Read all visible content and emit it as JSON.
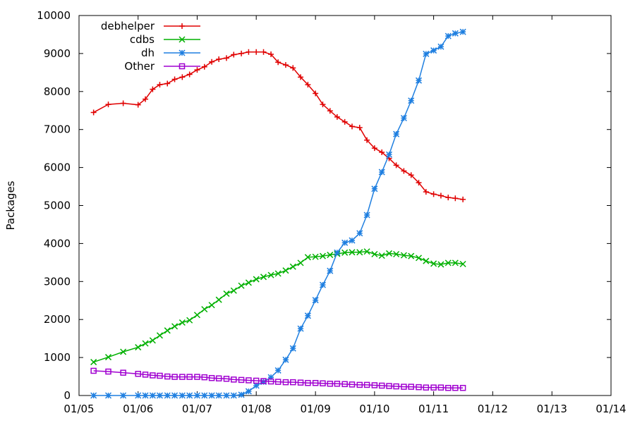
{
  "chart_data": {
    "type": "line",
    "xlabel": "",
    "ylabel": "Packages",
    "xlim": [
      "2005-01-01",
      "2014-01-01"
    ],
    "ylim": [
      0,
      10000
    ],
    "x_ticks": [
      "01/05",
      "01/06",
      "01/07",
      "01/08",
      "01/09",
      "01/10",
      "01/11",
      "01/12",
      "01/13",
      "01/14"
    ],
    "y_ticks": [
      "0",
      "1000",
      "2000",
      "3000",
      "4000",
      "5000",
      "6000",
      "7000",
      "8000",
      "9000",
      "10000"
    ],
    "grid": false,
    "legend_position": "top-left",
    "x": [
      "2005-04-01",
      "2005-06-01",
      "2005-08-01",
      "2005-10-01",
      "2005-11-01",
      "2005-12-01",
      "2006-01-01",
      "2006-02-01",
      "2006-03-01",
      "2006-04-01",
      "2006-05-01",
      "2006-06-01",
      "2006-07-01",
      "2006-08-01",
      "2006-09-01",
      "2006-10-01",
      "2006-11-01",
      "2006-12-01",
      "2007-01-01",
      "2007-02-01",
      "2007-03-01",
      "2007-04-01",
      "2007-05-01",
      "2007-06-01",
      "2007-07-01",
      "2007-08-01",
      "2007-09-01",
      "2007-10-01",
      "2007-11-01",
      "2007-12-01",
      "2008-01-01",
      "2008-02-01",
      "2008-03-01",
      "2008-04-01",
      "2008-05-01",
      "2008-06-01",
      "2008-07-01",
      "2008-08-01",
      "2008-09-01",
      "2008-10-01",
      "2008-11-01",
      "2008-12-01",
      "2009-01-01",
      "2009-02-01",
      "2009-03-01",
      "2009-04-01",
      "2009-05-01",
      "2009-06-01",
      "2009-07-01",
      "2009-08-01",
      "2009-09-01",
      "2009-10-01",
      "2009-11-01",
      "2009-12-01",
      "2010-01-01",
      "2010-02-01",
      "2010-03-01",
      "2010-04-01",
      "2010-05-01",
      "2010-06-01",
      "2010-07-01",
      "2010-08-01",
      "2010-09-01",
      "2010-10-01",
      "2010-11-01",
      "2010-12-01",
      "2011-01-01",
      "2011-02-01",
      "2011-03-01",
      "2011-04-01",
      "2011-05-01",
      "2011-06-01",
      "2011-07-01",
      "2011-08-01",
      "2011-09-01",
      "2011-10-01",
      "2011-11-01",
      "2011-12-01",
      "2012-01-01",
      "2012-02-01",
      "2012-03-01",
      "2012-04-01",
      "2012-05-01",
      "2012-06-01",
      "2012-07-01",
      "2012-08-01",
      "2012-09-01",
      "2012-10-01",
      "2012-11-01",
      "2012-12-01",
      "2013-01-01",
      "2013-02-01",
      "2013-03-01"
    ],
    "series": [
      {
        "name": "debhelper",
        "color": "#e00000",
        "marker": "plus",
        "points": [
          [
            "2005-04-01",
            7450
          ],
          [
            "2005-07-01",
            7660
          ],
          [
            "2005-10-01",
            7690
          ],
          [
            "2006-01-01",
            7650
          ],
          [
            "2006-02-15",
            7800
          ],
          [
            "2006-04-01",
            8060
          ],
          [
            "2006-05-15",
            8180
          ],
          [
            "2006-07-01",
            8210
          ],
          [
            "2006-08-15",
            8320
          ],
          [
            "2006-10-01",
            8380
          ],
          [
            "2006-11-15",
            8450
          ],
          [
            "2007-01-01",
            8570
          ],
          [
            "2007-02-15",
            8650
          ],
          [
            "2007-04-01",
            8780
          ],
          [
            "2007-05-15",
            8850
          ],
          [
            "2007-07-01",
            8880
          ],
          [
            "2007-08-15",
            8970
          ],
          [
            "2007-10-01",
            9000
          ],
          [
            "2007-11-15",
            9040
          ],
          [
            "2008-01-01",
            9040
          ],
          [
            "2008-02-15",
            9040
          ],
          [
            "2008-04-01",
            8980
          ],
          [
            "2008-05-15",
            8770
          ],
          [
            "2008-07-01",
            8700
          ],
          [
            "2008-08-15",
            8620
          ],
          [
            "2008-10-01",
            8380
          ],
          [
            "2008-11-15",
            8180
          ],
          [
            "2009-01-01",
            7950
          ],
          [
            "2009-02-15",
            7660
          ],
          [
            "2009-04-01",
            7490
          ],
          [
            "2009-05-15",
            7330
          ],
          [
            "2009-07-01",
            7200
          ],
          [
            "2009-08-15",
            7080
          ],
          [
            "2009-10-01",
            7050
          ],
          [
            "2009-11-15",
            6720
          ],
          [
            "2010-01-01",
            6510
          ],
          [
            "2010-02-15",
            6400
          ],
          [
            "2010-04-01",
            6240
          ],
          [
            "2010-05-15",
            6060
          ],
          [
            "2010-07-01",
            5910
          ],
          [
            "2010-08-15",
            5800
          ],
          [
            "2010-10-01",
            5600
          ],
          [
            "2010-11-15",
            5360
          ],
          [
            "2011-01-01",
            5300
          ],
          [
            "2011-02-15",
            5260
          ],
          [
            "2011-04-01",
            5210
          ],
          [
            "2011-05-15",
            5190
          ],
          [
            "2011-07-01",
            5160
          ]
        ]
      },
      {
        "name": "cdbs",
        "color": "#00b000",
        "marker": "cross",
        "points": [
          [
            "2005-04-01",
            880
          ],
          [
            "2005-07-01",
            1010
          ],
          [
            "2005-10-01",
            1150
          ],
          [
            "2006-01-01",
            1270
          ],
          [
            "2006-02-15",
            1370
          ],
          [
            "2006-04-01",
            1450
          ],
          [
            "2006-05-15",
            1580
          ],
          [
            "2006-07-01",
            1710
          ],
          [
            "2006-08-15",
            1820
          ],
          [
            "2006-10-01",
            1920
          ],
          [
            "2006-11-15",
            1980
          ],
          [
            "2007-01-01",
            2120
          ],
          [
            "2007-02-15",
            2270
          ],
          [
            "2007-04-01",
            2380
          ],
          [
            "2007-05-15",
            2520
          ],
          [
            "2007-07-01",
            2680
          ],
          [
            "2007-08-15",
            2760
          ],
          [
            "2007-10-01",
            2890
          ],
          [
            "2007-11-15",
            2970
          ],
          [
            "2008-01-01",
            3060
          ],
          [
            "2008-02-15",
            3120
          ],
          [
            "2008-04-01",
            3170
          ],
          [
            "2008-05-15",
            3210
          ],
          [
            "2008-07-01",
            3290
          ],
          [
            "2008-08-15",
            3390
          ],
          [
            "2008-10-01",
            3490
          ],
          [
            "2008-11-15",
            3640
          ],
          [
            "2009-01-01",
            3650
          ],
          [
            "2009-02-15",
            3670
          ],
          [
            "2009-04-01",
            3700
          ],
          [
            "2009-05-15",
            3730
          ],
          [
            "2009-07-01",
            3760
          ],
          [
            "2009-08-15",
            3770
          ],
          [
            "2009-10-01",
            3770
          ],
          [
            "2009-11-15",
            3790
          ],
          [
            "2010-01-01",
            3720
          ],
          [
            "2010-02-15",
            3680
          ],
          [
            "2010-04-01",
            3740
          ],
          [
            "2010-05-15",
            3720
          ],
          [
            "2010-07-01",
            3690
          ],
          [
            "2010-08-15",
            3670
          ],
          [
            "2010-10-01",
            3620
          ],
          [
            "2010-11-15",
            3540
          ],
          [
            "2011-01-01",
            3470
          ],
          [
            "2011-02-15",
            3450
          ],
          [
            "2011-04-01",
            3490
          ],
          [
            "2011-05-15",
            3490
          ],
          [
            "2011-07-01",
            3460
          ]
        ]
      },
      {
        "name": "dh",
        "color": "#1f7fe0",
        "marker": "star",
        "points": [
          [
            "2005-04-01",
            0
          ],
          [
            "2005-07-01",
            0
          ],
          [
            "2005-10-01",
            0
          ],
          [
            "2006-01-01",
            0
          ],
          [
            "2006-02-15",
            0
          ],
          [
            "2006-04-01",
            0
          ],
          [
            "2006-05-15",
            0
          ],
          [
            "2006-07-01",
            0
          ],
          [
            "2006-08-15",
            0
          ],
          [
            "2006-10-01",
            0
          ],
          [
            "2006-11-15",
            0
          ],
          [
            "2007-01-01",
            0
          ],
          [
            "2007-02-15",
            0
          ],
          [
            "2007-04-01",
            0
          ],
          [
            "2007-05-15",
            0
          ],
          [
            "2007-07-01",
            0
          ],
          [
            "2007-08-15",
            0
          ],
          [
            "2007-10-01",
            20
          ],
          [
            "2007-11-15",
            110
          ],
          [
            "2008-01-01",
            260
          ],
          [
            "2008-02-15",
            360
          ],
          [
            "2008-04-01",
            480
          ],
          [
            "2008-05-15",
            660
          ],
          [
            "2008-07-01",
            940
          ],
          [
            "2008-08-15",
            1240
          ],
          [
            "2008-10-01",
            1760
          ],
          [
            "2008-11-15",
            2100
          ],
          [
            "2009-01-01",
            2510
          ],
          [
            "2009-02-15",
            2910
          ],
          [
            "2009-04-01",
            3280
          ],
          [
            "2009-05-15",
            3760
          ],
          [
            "2009-07-01",
            4020
          ],
          [
            "2009-08-15",
            4080
          ],
          [
            "2009-10-01",
            4270
          ],
          [
            "2009-11-15",
            4750
          ],
          [
            "2010-01-01",
            5440
          ],
          [
            "2010-02-15",
            5880
          ],
          [
            "2010-04-01",
            6340
          ],
          [
            "2010-05-15",
            6880
          ],
          [
            "2010-07-01",
            7300
          ],
          [
            "2010-08-15",
            7760
          ],
          [
            "2010-10-01",
            8290
          ],
          [
            "2010-11-15",
            8990
          ],
          [
            "2011-01-01",
            9080
          ],
          [
            "2011-02-15",
            9180
          ],
          [
            "2011-04-01",
            9460
          ],
          [
            "2011-05-15",
            9530
          ],
          [
            "2011-07-01",
            9570
          ]
        ]
      },
      {
        "name": "Other",
        "color": "#a000d0",
        "marker": "square",
        "points": [
          [
            "2005-04-01",
            650
          ],
          [
            "2005-07-01",
            630
          ],
          [
            "2005-10-01",
            600
          ],
          [
            "2006-01-01",
            570
          ],
          [
            "2006-02-15",
            550
          ],
          [
            "2006-04-01",
            530
          ],
          [
            "2006-05-15",
            520
          ],
          [
            "2006-07-01",
            500
          ],
          [
            "2006-08-15",
            490
          ],
          [
            "2006-10-01",
            490
          ],
          [
            "2006-11-15",
            490
          ],
          [
            "2007-01-01",
            490
          ],
          [
            "2007-02-15",
            480
          ],
          [
            "2007-04-01",
            460
          ],
          [
            "2007-05-15",
            450
          ],
          [
            "2007-07-01",
            440
          ],
          [
            "2007-08-15",
            420
          ],
          [
            "2007-10-01",
            410
          ],
          [
            "2007-11-15",
            400
          ],
          [
            "2008-01-01",
            390
          ],
          [
            "2008-02-15",
            380
          ],
          [
            "2008-04-01",
            370
          ],
          [
            "2008-05-15",
            360
          ],
          [
            "2008-07-01",
            350
          ],
          [
            "2008-08-15",
            350
          ],
          [
            "2008-10-01",
            340
          ],
          [
            "2008-11-15",
            330
          ],
          [
            "2009-01-01",
            330
          ],
          [
            "2009-02-15",
            320
          ],
          [
            "2009-04-01",
            310
          ],
          [
            "2009-05-15",
            310
          ],
          [
            "2009-07-01",
            300
          ],
          [
            "2009-08-15",
            290
          ],
          [
            "2009-10-01",
            280
          ],
          [
            "2009-11-15",
            280
          ],
          [
            "2010-01-01",
            270
          ],
          [
            "2010-02-15",
            260
          ],
          [
            "2010-04-01",
            250
          ],
          [
            "2010-05-15",
            240
          ],
          [
            "2010-07-01",
            230
          ],
          [
            "2010-08-15",
            230
          ],
          [
            "2010-10-01",
            220
          ],
          [
            "2010-11-15",
            210
          ],
          [
            "2011-01-01",
            210
          ],
          [
            "2011-02-15",
            210
          ],
          [
            "2011-04-01",
            200
          ],
          [
            "2011-05-15",
            200
          ],
          [
            "2011-07-01",
            200
          ]
        ]
      }
    ]
  }
}
